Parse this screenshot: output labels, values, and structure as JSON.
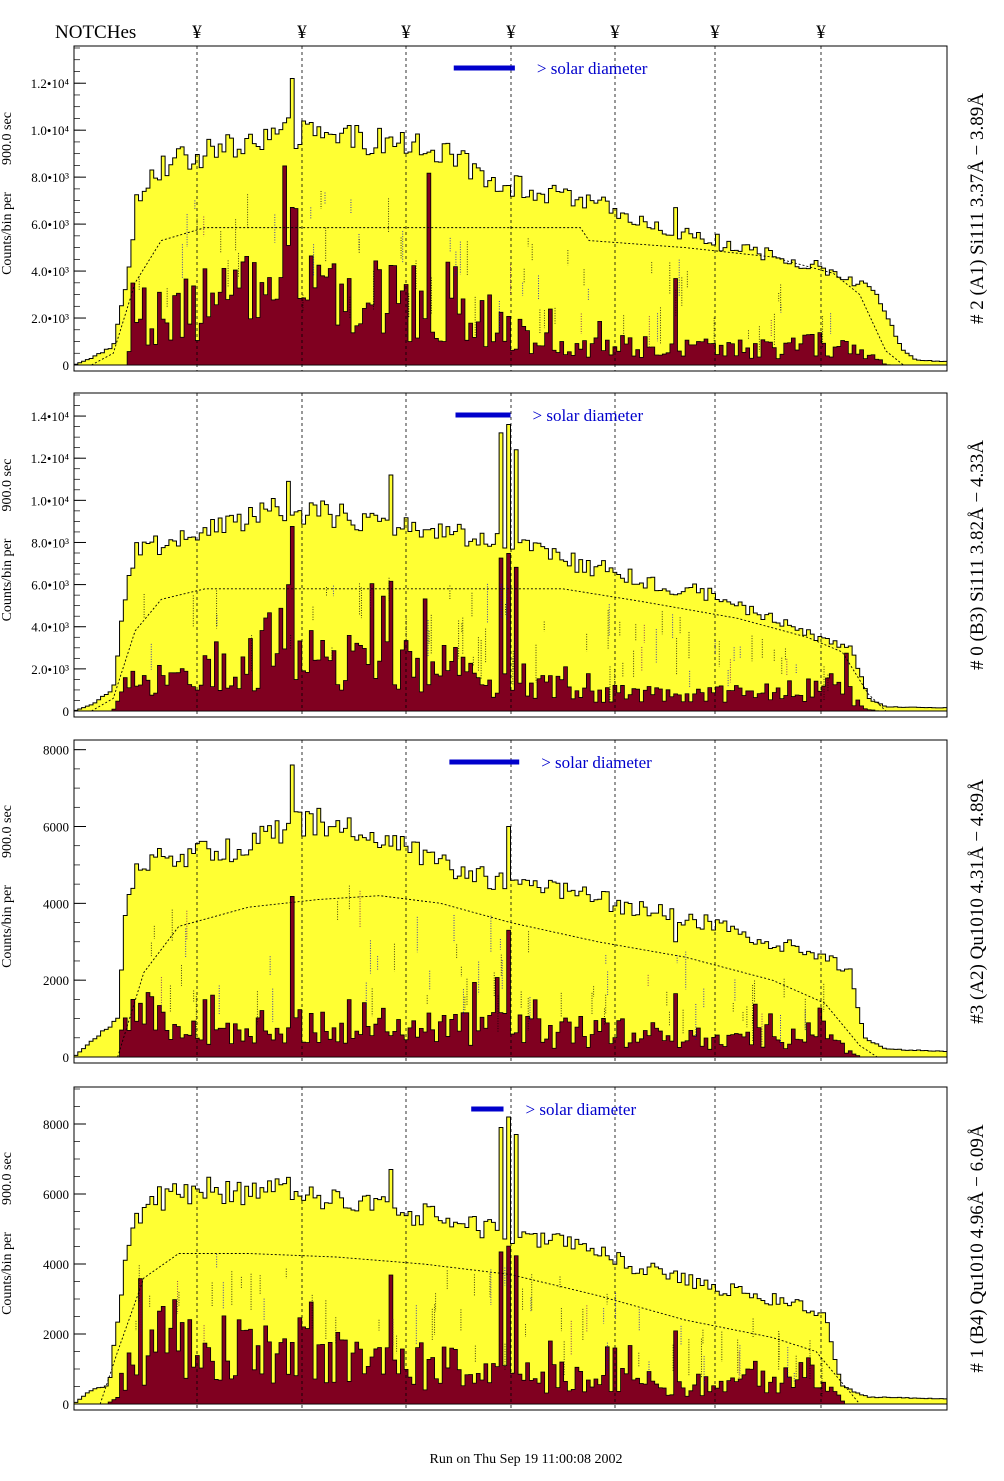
{
  "header": {
    "notches_label": "NOTCHes",
    "notch_symbol": "¥"
  },
  "footer": {
    "run_text": "Run on Thu Sep 19 11:00:08 2002"
  },
  "colors": {
    "fill_total": "#ffff33",
    "fill_sub": "#800020",
    "annotation_blue": "#0000cc",
    "annotation_purple": "#660066",
    "frame": "#000000"
  },
  "chart_data": [
    {
      "type": "bar",
      "title": "# 2 (A1) Si111  3.37Å − 3.89Å",
      "ylabel_main": "Counts/bin per",
      "ylabel_time": "900.0 sec",
      "legend_text": "> solar diameter",
      "ylim": [
        0,
        13500
      ],
      "yticks": [
        {
          "v": 0,
          "label": "0"
        },
        {
          "v": 2000,
          "label": "2.0•10³"
        },
        {
          "v": 4000,
          "label": "4.0•10³"
        },
        {
          "v": 6000,
          "label": "6.0•10³"
        },
        {
          "v": 8000,
          "label": "8.0•10³"
        },
        {
          "v": 10000,
          "label": "1.0•10⁴"
        },
        {
          "v": 12000,
          "label": "1.2•10⁴"
        }
      ],
      "total_profile": [
        {
          "x": 0.0,
          "v": 0
        },
        {
          "x": 0.02,
          "v": 300
        },
        {
          "x": 0.045,
          "v": 800
        },
        {
          "x": 0.06,
          "v": 3500
        },
        {
          "x": 0.072,
          "v": 7000
        },
        {
          "x": 0.09,
          "v": 8300
        },
        {
          "x": 0.13,
          "v": 8800
        },
        {
          "x": 0.18,
          "v": 9300
        },
        {
          "x": 0.24,
          "v": 9900
        },
        {
          "x": 0.3,
          "v": 9700
        },
        {
          "x": 0.36,
          "v": 9500
        },
        {
          "x": 0.42,
          "v": 9100
        },
        {
          "x": 0.48,
          "v": 7900
        },
        {
          "x": 0.54,
          "v": 7300
        },
        {
          "x": 0.6,
          "v": 6800
        },
        {
          "x": 0.66,
          "v": 6000
        },
        {
          "x": 0.72,
          "v": 5400
        },
        {
          "x": 0.78,
          "v": 4800
        },
        {
          "x": 0.84,
          "v": 4300
        },
        {
          "x": 0.88,
          "v": 3900
        },
        {
          "x": 0.92,
          "v": 3000
        },
        {
          "x": 0.95,
          "v": 600
        },
        {
          "x": 0.965,
          "v": 200
        },
        {
          "x": 1.0,
          "v": 150
        }
      ],
      "sub_profile": [
        {
          "x": 0.0,
          "v": 0
        },
        {
          "x": 0.06,
          "v": 0
        },
        {
          "x": 0.072,
          "v": 2000
        },
        {
          "x": 0.12,
          "v": 2600
        },
        {
          "x": 0.2,
          "v": 2900
        },
        {
          "x": 0.25,
          "v": 3400
        },
        {
          "x": 0.3,
          "v": 3200
        },
        {
          "x": 0.36,
          "v": 2800
        },
        {
          "x": 0.42,
          "v": 2900
        },
        {
          "x": 0.46,
          "v": 2300
        },
        {
          "x": 0.5,
          "v": 1500
        },
        {
          "x": 0.54,
          "v": 900
        },
        {
          "x": 0.58,
          "v": 700
        },
        {
          "x": 0.62,
          "v": 900
        },
        {
          "x": 0.7,
          "v": 700
        },
        {
          "x": 0.78,
          "v": 700
        },
        {
          "x": 0.86,
          "v": 900
        },
        {
          "x": 0.9,
          "v": 600
        },
        {
          "x": 0.92,
          "v": 200
        },
        {
          "x": 0.935,
          "v": 0
        },
        {
          "x": 1.0,
          "v": 0
        }
      ],
      "model_curve": [
        {
          "x": 0.02,
          "v": 0
        },
        {
          "x": 0.045,
          "v": 500
        },
        {
          "x": 0.07,
          "v": 3500
        },
        {
          "x": 0.1,
          "v": 5300
        },
        {
          "x": 0.15,
          "v": 5850
        },
        {
          "x": 0.25,
          "v": 5850
        },
        {
          "x": 0.58,
          "v": 5850
        },
        {
          "x": 0.59,
          "v": 5300
        },
        {
          "x": 0.7,
          "v": 5000
        },
        {
          "x": 0.8,
          "v": 4600
        },
        {
          "x": 0.87,
          "v": 3900
        },
        {
          "x": 0.9,
          "v": 3000
        },
        {
          "x": 0.93,
          "v": 600
        },
        {
          "x": 0.95,
          "v": 0
        }
      ],
      "spikes": [
        {
          "x": 0.25,
          "v": 12200
        },
        {
          "x": 0.69,
          "v": 6700
        }
      ],
      "legend_bar_x": [
        0.435,
        0.505
      ]
    },
    {
      "type": "bar",
      "title": "# 0 (B3) Si111  3.82Å − 4.33Å",
      "ylabel_main": "Counts/bin per",
      "ylabel_time": "900.0 sec",
      "legend_text": "> solar diameter",
      "ylim": [
        0,
        15000
      ],
      "yticks": [
        {
          "v": 0,
          "label": "0"
        },
        {
          "v": 2000,
          "label": "2.0•10³"
        },
        {
          "v": 4000,
          "label": "4.0•10³"
        },
        {
          "v": 6000,
          "label": "6.0•10³"
        },
        {
          "v": 8000,
          "label": "8.0•10³"
        },
        {
          "v": 10000,
          "label": "1.0•10⁴"
        },
        {
          "v": 12000,
          "label": "1.2•10⁴"
        },
        {
          "v": 14000,
          "label": "1.4•10⁴"
        }
      ],
      "total_profile": [
        {
          "x": 0.0,
          "v": 0
        },
        {
          "x": 0.02,
          "v": 300
        },
        {
          "x": 0.045,
          "v": 1000
        },
        {
          "x": 0.055,
          "v": 4500
        },
        {
          "x": 0.07,
          "v": 7600
        },
        {
          "x": 0.12,
          "v": 8200
        },
        {
          "x": 0.18,
          "v": 8800
        },
        {
          "x": 0.23,
          "v": 9500
        },
        {
          "x": 0.28,
          "v": 9400
        },
        {
          "x": 0.33,
          "v": 9100
        },
        {
          "x": 0.38,
          "v": 8700
        },
        {
          "x": 0.43,
          "v": 8400
        },
        {
          "x": 0.48,
          "v": 8100
        },
        {
          "x": 0.54,
          "v": 7400
        },
        {
          "x": 0.6,
          "v": 6800
        },
        {
          "x": 0.66,
          "v": 6100
        },
        {
          "x": 0.72,
          "v": 5600
        },
        {
          "x": 0.78,
          "v": 4700
        },
        {
          "x": 0.82,
          "v": 4000
        },
        {
          "x": 0.86,
          "v": 3400
        },
        {
          "x": 0.89,
          "v": 3000
        },
        {
          "x": 0.91,
          "v": 600
        },
        {
          "x": 0.93,
          "v": 200
        },
        {
          "x": 1.0,
          "v": 150
        }
      ],
      "sub_profile": [
        {
          "x": 0.0,
          "v": 0
        },
        {
          "x": 0.045,
          "v": 0
        },
        {
          "x": 0.06,
          "v": 1300
        },
        {
          "x": 0.12,
          "v": 1700
        },
        {
          "x": 0.18,
          "v": 2200
        },
        {
          "x": 0.24,
          "v": 3200
        },
        {
          "x": 0.3,
          "v": 2700
        },
        {
          "x": 0.36,
          "v": 2300
        },
        {
          "x": 0.42,
          "v": 2000
        },
        {
          "x": 0.48,
          "v": 1800
        },
        {
          "x": 0.54,
          "v": 1200
        },
        {
          "x": 0.6,
          "v": 900
        },
        {
          "x": 0.68,
          "v": 700
        },
        {
          "x": 0.76,
          "v": 800
        },
        {
          "x": 0.84,
          "v": 1000
        },
        {
          "x": 0.88,
          "v": 1200
        },
        {
          "x": 0.9,
          "v": 300
        },
        {
          "x": 0.92,
          "v": 0
        },
        {
          "x": 1.0,
          "v": 0
        }
      ],
      "model_curve": [
        {
          "x": 0.02,
          "v": 0
        },
        {
          "x": 0.045,
          "v": 600
        },
        {
          "x": 0.07,
          "v": 3800
        },
        {
          "x": 0.1,
          "v": 5300
        },
        {
          "x": 0.15,
          "v": 5800
        },
        {
          "x": 0.25,
          "v": 5800
        },
        {
          "x": 0.56,
          "v": 5800
        },
        {
          "x": 0.65,
          "v": 5200
        },
        {
          "x": 0.76,
          "v": 4400
        },
        {
          "x": 0.84,
          "v": 3500
        },
        {
          "x": 0.88,
          "v": 2800
        },
        {
          "x": 0.91,
          "v": 800
        },
        {
          "x": 0.93,
          "v": 0
        }
      ],
      "spikes": [
        {
          "x": 0.246,
          "v": 10900
        },
        {
          "x": 0.362,
          "v": 11200
        },
        {
          "x": 0.487,
          "v": 13200
        },
        {
          "x": 0.496,
          "v": 13600
        },
        {
          "x": 0.505,
          "v": 12400
        }
      ],
      "legend_bar_x": [
        0.437,
        0.5
      ]
    },
    {
      "type": "bar",
      "title": "#3 (A2) Qu1010  4.31Å − 4.89Å",
      "ylabel_main": "Counts/bin per",
      "ylabel_time": "900.0 sec",
      "legend_text": "> solar diameter",
      "ylim": [
        0,
        8200
      ],
      "yticks": [
        {
          "v": 0,
          "label": "0"
        },
        {
          "v": 2000,
          "label": "2000"
        },
        {
          "v": 4000,
          "label": "4000"
        },
        {
          "v": 6000,
          "label": "6000"
        },
        {
          "v": 8000,
          "label": "8000"
        }
      ],
      "total_profile": [
        {
          "x": 0.0,
          "v": 0
        },
        {
          "x": 0.02,
          "v": 400
        },
        {
          "x": 0.05,
          "v": 1000
        },
        {
          "x": 0.06,
          "v": 4000
        },
        {
          "x": 0.075,
          "v": 5000
        },
        {
          "x": 0.12,
          "v": 5200
        },
        {
          "x": 0.18,
          "v": 5400
        },
        {
          "x": 0.23,
          "v": 5900
        },
        {
          "x": 0.28,
          "v": 6100
        },
        {
          "x": 0.33,
          "v": 5900
        },
        {
          "x": 0.38,
          "v": 5400
        },
        {
          "x": 0.44,
          "v": 4900
        },
        {
          "x": 0.5,
          "v": 4500
        },
        {
          "x": 0.56,
          "v": 4300
        },
        {
          "x": 0.62,
          "v": 4000
        },
        {
          "x": 0.68,
          "v": 3700
        },
        {
          "x": 0.74,
          "v": 3400
        },
        {
          "x": 0.8,
          "v": 3000
        },
        {
          "x": 0.86,
          "v": 2600
        },
        {
          "x": 0.89,
          "v": 2200
        },
        {
          "x": 0.905,
          "v": 500
        },
        {
          "x": 0.93,
          "v": 200
        },
        {
          "x": 1.0,
          "v": 150
        }
      ],
      "sub_profile": [
        {
          "x": 0.0,
          "v": 0
        },
        {
          "x": 0.05,
          "v": 0
        },
        {
          "x": 0.06,
          "v": 1300
        },
        {
          "x": 0.1,
          "v": 900
        },
        {
          "x": 0.15,
          "v": 700
        },
        {
          "x": 0.2,
          "v": 700
        },
        {
          "x": 0.25,
          "v": 900
        },
        {
          "x": 0.3,
          "v": 1000
        },
        {
          "x": 0.36,
          "v": 800
        },
        {
          "x": 0.42,
          "v": 700
        },
        {
          "x": 0.48,
          "v": 800
        },
        {
          "x": 0.54,
          "v": 600
        },
        {
          "x": 0.6,
          "v": 700
        },
        {
          "x": 0.68,
          "v": 600
        },
        {
          "x": 0.76,
          "v": 500
        },
        {
          "x": 0.84,
          "v": 600
        },
        {
          "x": 0.88,
          "v": 300
        },
        {
          "x": 0.9,
          "v": 0
        },
        {
          "x": 1.0,
          "v": 0
        }
      ],
      "model_curve": [
        {
          "x": 0.05,
          "v": 0
        },
        {
          "x": 0.08,
          "v": 2200
        },
        {
          "x": 0.12,
          "v": 3400
        },
        {
          "x": 0.2,
          "v": 3900
        },
        {
          "x": 0.28,
          "v": 4100
        },
        {
          "x": 0.35,
          "v": 4200
        },
        {
          "x": 0.42,
          "v": 4000
        },
        {
          "x": 0.5,
          "v": 3500
        },
        {
          "x": 0.6,
          "v": 3000
        },
        {
          "x": 0.7,
          "v": 2600
        },
        {
          "x": 0.8,
          "v": 2000
        },
        {
          "x": 0.86,
          "v": 1400
        },
        {
          "x": 0.9,
          "v": 300
        },
        {
          "x": 0.92,
          "v": 0
        }
      ],
      "spikes": [
        {
          "x": 0.25,
          "v": 7600
        },
        {
          "x": 0.497,
          "v": 6000
        },
        {
          "x": 0.69,
          "v": 3000
        }
      ],
      "legend_bar_x": [
        0.43,
        0.51
      ]
    },
    {
      "type": "bar",
      "title": "# 1 (B4) Qu1010 4.96Å − 6.09Å",
      "ylabel_main": "Counts/bin per",
      "ylabel_time": "900.0 sec",
      "legend_text": "> solar diameter",
      "ylim": [
        0,
        9000
      ],
      "yticks": [
        {
          "v": 0,
          "label": "0"
        },
        {
          "v": 2000,
          "label": "2000"
        },
        {
          "v": 4000,
          "label": "4000"
        },
        {
          "v": 6000,
          "label": "6000"
        },
        {
          "v": 8000,
          "label": "8000"
        }
      ],
      "total_profile": [
        {
          "x": 0.0,
          "v": 0
        },
        {
          "x": 0.02,
          "v": 400
        },
        {
          "x": 0.04,
          "v": 500
        },
        {
          "x": 0.05,
          "v": 2500
        },
        {
          "x": 0.065,
          "v": 5000
        },
        {
          "x": 0.1,
          "v": 5900
        },
        {
          "x": 0.15,
          "v": 6100
        },
        {
          "x": 0.2,
          "v": 6000
        },
        {
          "x": 0.25,
          "v": 6100
        },
        {
          "x": 0.3,
          "v": 5800
        },
        {
          "x": 0.36,
          "v": 5600
        },
        {
          "x": 0.42,
          "v": 5300
        },
        {
          "x": 0.48,
          "v": 5000
        },
        {
          "x": 0.54,
          "v": 4700
        },
        {
          "x": 0.6,
          "v": 4300
        },
        {
          "x": 0.66,
          "v": 3800
        },
        {
          "x": 0.72,
          "v": 3400
        },
        {
          "x": 0.78,
          "v": 3100
        },
        {
          "x": 0.83,
          "v": 2800
        },
        {
          "x": 0.86,
          "v": 2500
        },
        {
          "x": 0.88,
          "v": 500
        },
        {
          "x": 0.91,
          "v": 200
        },
        {
          "x": 1.0,
          "v": 150
        }
      ],
      "sub_profile": [
        {
          "x": 0.0,
          "v": 0
        },
        {
          "x": 0.04,
          "v": 0
        },
        {
          "x": 0.06,
          "v": 900
        },
        {
          "x": 0.1,
          "v": 1800
        },
        {
          "x": 0.15,
          "v": 1700
        },
        {
          "x": 0.2,
          "v": 1500
        },
        {
          "x": 0.25,
          "v": 1600
        },
        {
          "x": 0.3,
          "v": 1300
        },
        {
          "x": 0.36,
          "v": 1100
        },
        {
          "x": 0.42,
          "v": 1100
        },
        {
          "x": 0.48,
          "v": 900
        },
        {
          "x": 0.54,
          "v": 800
        },
        {
          "x": 0.6,
          "v": 700
        },
        {
          "x": 0.68,
          "v": 600
        },
        {
          "x": 0.76,
          "v": 700
        },
        {
          "x": 0.84,
          "v": 900
        },
        {
          "x": 0.87,
          "v": 300
        },
        {
          "x": 0.885,
          "v": 0
        },
        {
          "x": 1.0,
          "v": 0
        }
      ],
      "model_curve": [
        {
          "x": 0.03,
          "v": 0
        },
        {
          "x": 0.05,
          "v": 1500
        },
        {
          "x": 0.08,
          "v": 3600
        },
        {
          "x": 0.12,
          "v": 4300
        },
        {
          "x": 0.2,
          "v": 4300
        },
        {
          "x": 0.3,
          "v": 4200
        },
        {
          "x": 0.4,
          "v": 4000
        },
        {
          "x": 0.5,
          "v": 3700
        },
        {
          "x": 0.6,
          "v": 3100
        },
        {
          "x": 0.7,
          "v": 2400
        },
        {
          "x": 0.8,
          "v": 1900
        },
        {
          "x": 0.85,
          "v": 1500
        },
        {
          "x": 0.88,
          "v": 600
        },
        {
          "x": 0.9,
          "v": 0
        }
      ],
      "spikes": [
        {
          "x": 0.362,
          "v": 6700
        },
        {
          "x": 0.487,
          "v": 7900
        },
        {
          "x": 0.497,
          "v": 8200
        },
        {
          "x": 0.506,
          "v": 7700
        },
        {
          "x": 0.69,
          "v": 3800
        }
      ],
      "legend_bar_x": [
        0.455,
        0.492
      ]
    }
  ]
}
